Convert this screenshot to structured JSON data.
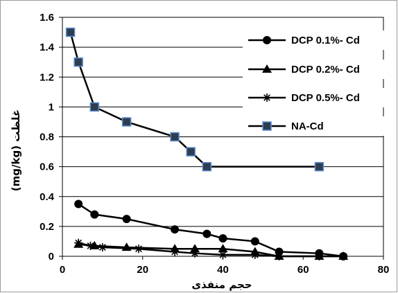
{
  "chart_data": {
    "type": "line",
    "title": "",
    "xlabel": "حجم منفذی",
    "ylabel": "(mg/kg) غلظت",
    "xlim": [
      0,
      80
    ],
    "ylim": [
      0,
      1.6
    ],
    "x_ticks": [
      "0",
      "20",
      "40",
      "60",
      "80"
    ],
    "y_ticks": [
      "0",
      "0.2",
      "0.4",
      "0.6",
      "0.8",
      "1",
      "1.2",
      "1.4",
      "1.6"
    ],
    "grid": "horizontal",
    "legend_position": "top-right",
    "series": [
      {
        "name": "DCP 0.1%- Cd",
        "marker": "circle",
        "color": "#000000",
        "x": [
          4,
          8,
          16,
          28,
          36,
          40,
          48,
          54,
          64,
          70
        ],
        "y": [
          0.35,
          0.28,
          0.25,
          0.18,
          0.15,
          0.12,
          0.1,
          0.03,
          0.02,
          0.0
        ]
      },
      {
        "name": "DCP 0.2%- Cd",
        "marker": "triangle",
        "color": "#000000",
        "x": [
          4,
          8,
          16,
          28,
          33,
          40,
          48,
          54,
          64,
          70
        ],
        "y": [
          0.08,
          0.07,
          0.06,
          0.05,
          0.05,
          0.05,
          0.03,
          0.0,
          0.0,
          0.0
        ]
      },
      {
        "name": "DCP 0.5%- Cd",
        "marker": "star",
        "color": "#000000",
        "x": [
          4,
          7,
          10,
          19,
          28,
          33,
          40,
          48,
          54,
          64,
          70
        ],
        "y": [
          0.09,
          0.07,
          0.06,
          0.05,
          0.03,
          0.02,
          0.01,
          0.01,
          0.0,
          0.0,
          0.0
        ]
      },
      {
        "name": "NA-Cd",
        "marker": "square",
        "color": "#000000",
        "marker_fill": "#2f3d4f",
        "marker_edge": "#5b8fd6",
        "x": [
          2,
          4,
          8,
          16,
          28,
          32,
          36,
          64
        ],
        "y": [
          1.5,
          1.3,
          1.0,
          0.9,
          0.8,
          0.7,
          0.6,
          0.6
        ]
      }
    ]
  }
}
